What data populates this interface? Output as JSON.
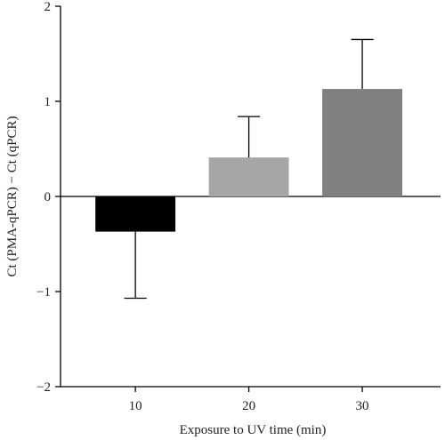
{
  "chart_data": {
    "type": "bar",
    "categories": [
      "10",
      "20",
      "30"
    ],
    "values": [
      -0.37,
      0.41,
      1.13
    ],
    "error_upper": [
      null,
      0.84,
      1.65
    ],
    "error_lower": [
      -1.07,
      null,
      null
    ],
    "colors": [
      "#000000",
      "#a6a6a6",
      "#808080"
    ],
    "xlabel": "Exposure to UV time (min)",
    "ylabel": "Ct (PMA-qPCR) − Ct (qPCR)",
    "ylim": [
      -2,
      2
    ],
    "yticks": [
      "−2",
      "−1",
      "0",
      "1",
      "2"
    ],
    "ytick_values": [
      -2,
      -1,
      0,
      1,
      2
    ],
    "grid": false,
    "legend": "none"
  }
}
